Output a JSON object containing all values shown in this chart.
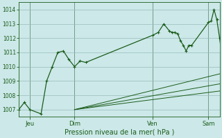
{
  "xlabel": "Pression niveau de la mer( hPa )",
  "bg_color": "#cce8e8",
  "grid_color": "#99bbbb",
  "line_color": "#1a5c1a",
  "ylim": [
    1006.5,
    1014.5
  ],
  "xlim": [
    0,
    144
  ],
  "yticks": [
    1007,
    1008,
    1009,
    1010,
    1011,
    1012,
    1013,
    1014
  ],
  "day_positions": [
    8,
    40,
    96,
    136
  ],
  "day_labels": [
    "Jeu",
    "Dim",
    "Ven",
    "Sam"
  ],
  "series_main": {
    "x": [
      0,
      4,
      8,
      16,
      20,
      24,
      28,
      32,
      36,
      40,
      44,
      48,
      96,
      100,
      104,
      108,
      110,
      112,
      114,
      116,
      118,
      120,
      122,
      124,
      136,
      138,
      140,
      142,
      144,
      146
    ],
    "y": [
      1007.0,
      1007.5,
      1007.0,
      1006.7,
      1009.0,
      1010.0,
      1011.0,
      1011.1,
      1010.5,
      1010.0,
      1010.4,
      1010.3,
      1012.2,
      1012.4,
      1013.0,
      1012.5,
      1012.4,
      1012.4,
      1012.3,
      1011.8,
      1011.5,
      1011.1,
      1011.5,
      1011.5,
      1013.1,
      1013.2,
      1014.0,
      1013.3,
      1012.0,
      1010.5
    ]
  },
  "fan_lines": [
    {
      "x": [
        40,
        144
      ],
      "y": [
        1007.0,
        1009.5
      ]
    },
    {
      "x": [
        40,
        144
      ],
      "y": [
        1007.0,
        1008.8
      ]
    },
    {
      "x": [
        40,
        144
      ],
      "y": [
        1007.0,
        1008.3
      ]
    }
  ]
}
